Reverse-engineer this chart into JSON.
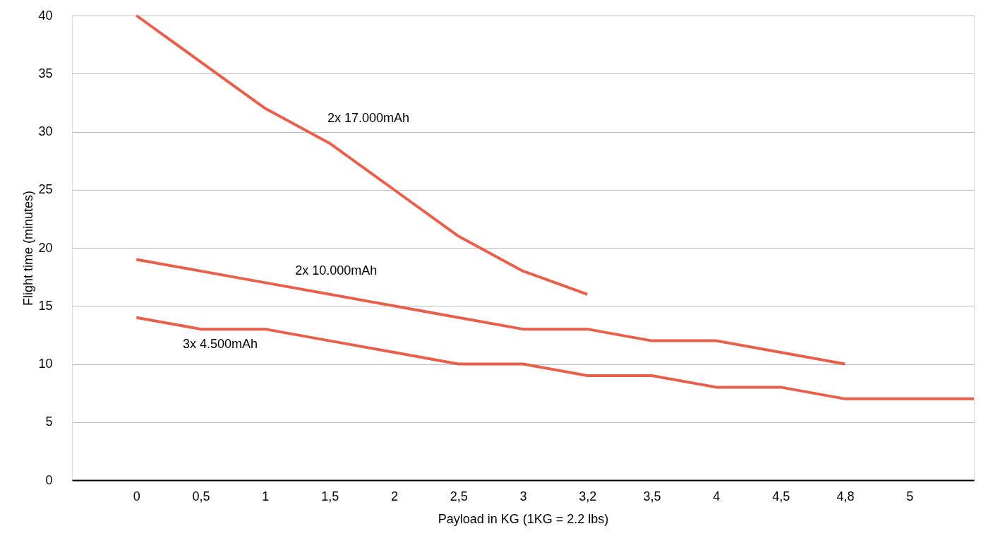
{
  "chart_data": {
    "type": "line",
    "xlabel": "Payload in KG (1KG = 2.2 lbs)",
    "ylabel": "Flight time (minutes)",
    "categories": [
      null,
      "0",
      "0,5",
      "1",
      "1,5",
      "2",
      "2,5",
      "3",
      "3,2",
      "3,5",
      "4",
      "4,5",
      "4,8",
      "5",
      null
    ],
    "series": [
      {
        "name": "2x 17.000mAh",
        "color": "#e8604c",
        "values": [
          null,
          40,
          36,
          32,
          29,
          25,
          21,
          18,
          16,
          null,
          null,
          null,
          null,
          null,
          null
        ]
      },
      {
        "name": "2x 10.000mAh",
        "color": "#e8604c",
        "values": [
          null,
          19,
          18,
          17,
          16,
          15,
          14,
          13,
          13,
          12,
          12,
          11,
          10,
          null,
          null
        ]
      },
      {
        "name": "3x 4.500mAh",
        "color": "#e8604c",
        "values": [
          null,
          14,
          13,
          13,
          12,
          11,
          10,
          10,
          9,
          9,
          8,
          8,
          7,
          7,
          7
        ]
      }
    ],
    "ylim": [
      0,
      40
    ],
    "yticks": [
      0,
      5,
      10,
      15,
      20,
      25,
      30,
      35,
      40
    ],
    "grid": "y",
    "marker": "none",
    "line_style": "solid"
  }
}
